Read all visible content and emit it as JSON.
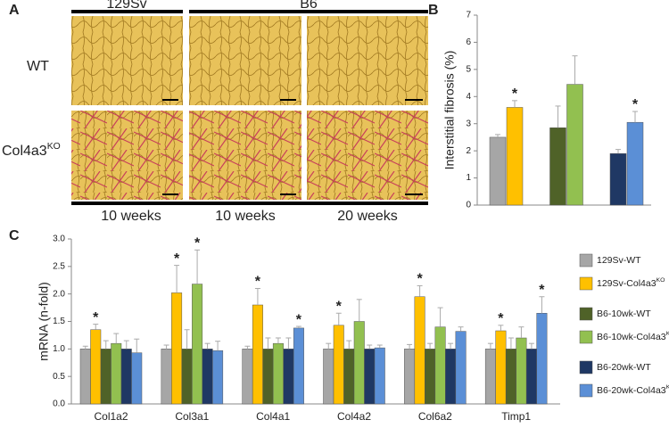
{
  "panel_a": {
    "label": "A",
    "columns": [
      "129Sv",
      "B6"
    ],
    "rows": [
      "WT",
      "Col4a3KO"
    ],
    "times": [
      "10 weeks",
      "10 weeks",
      "20 weeks"
    ]
  },
  "chart_data": [
    {
      "type": "bar",
      "label": "B",
      "ylabel": "Interstitial fibrosis (%)",
      "ylim": [
        0,
        7
      ],
      "yticks": [
        0,
        1,
        2,
        3,
        4,
        5,
        6,
        7
      ],
      "values": [
        2.5,
        3.6,
        2.85,
        4.45,
        1.9,
        3.05
      ],
      "errors": [
        0.1,
        0.25,
        0.8,
        1.05,
        0.15,
        0.4
      ],
      "labels": [
        null,
        "*",
        null,
        null,
        null,
        "*"
      ],
      "colors": [
        "#a6a6a6",
        "#ffc000",
        "#4f6228",
        "#92c050",
        "#1f3864",
        "#5b8fd6"
      ]
    },
    {
      "type": "grouped_bar",
      "label": "C",
      "ylabel": "mRNA (n-fold)",
      "ylim": [
        0,
        3
      ],
      "yticks": [
        {
          "value": 0,
          "label": "0.0"
        },
        0.5,
        {
          "value": 1,
          "label": "1.0"
        },
        1.5,
        {
          "value": 2,
          "label": "2.0"
        },
        2.5,
        {
          "value": 3,
          "label": "3.0"
        }
      ],
      "categories": [
        "Col1a2",
        "Col3a1",
        "Col4a1",
        "Col4a2",
        "Col6a2",
        "Timp1"
      ],
      "series": [
        {
          "name": "129Sv-WT",
          "color": "#a6a6a6",
          "values": [
            1.0,
            1.0,
            1.0,
            1.0,
            1.0,
            1.0
          ],
          "errors": [
            0.05,
            0.07,
            0.05,
            0.1,
            0.08,
            0.1
          ],
          "labels": [
            null,
            null,
            null,
            null,
            null,
            null
          ]
        },
        {
          "name": "129Sv-Col4a3KO",
          "color": "#ffc000",
          "values": [
            1.35,
            2.02,
            1.8,
            1.43,
            1.95,
            1.33
          ],
          "errors": [
            0.1,
            0.5,
            0.3,
            0.22,
            0.2,
            0.1
          ],
          "labels": [
            "*",
            "*",
            "*",
            "*",
            "*",
            "*"
          ]
        },
        {
          "name": "B6-10wk-WT",
          "color": "#4f6228",
          "values": [
            1.0,
            1.0,
            1.0,
            1.0,
            1.0,
            1.0
          ],
          "errors": [
            0.15,
            0.35,
            0.2,
            0.15,
            0.1,
            0.2
          ],
          "labels": [
            null,
            null,
            null,
            null,
            null,
            null
          ]
        },
        {
          "name": "B6-10wk-Col4a3KO",
          "color": "#92c050",
          "values": [
            1.1,
            2.18,
            1.1,
            1.5,
            1.4,
            1.2
          ],
          "errors": [
            0.18,
            0.62,
            0.1,
            0.4,
            0.35,
            0.2
          ],
          "labels": [
            null,
            "*",
            null,
            null,
            null,
            null
          ]
        },
        {
          "name": "B6-20wk-WT",
          "color": "#1f3864",
          "values": [
            1.0,
            1.0,
            1.0,
            1.0,
            1.0,
            1.0
          ],
          "errors": [
            0.15,
            0.1,
            0.2,
            0.07,
            0.1,
            0.1
          ],
          "labels": [
            null,
            null,
            null,
            null,
            null,
            null
          ]
        },
        {
          "name": "B6-20wk-Col4a3KO",
          "color": "#5b8fd6",
          "values": [
            0.93,
            0.97,
            1.38,
            1.02,
            1.32,
            1.65
          ],
          "errors": [
            0.25,
            0.17,
            0.03,
            0.05,
            0.08,
            0.3
          ],
          "labels": [
            null,
            null,
            "*",
            null,
            null,
            "*"
          ]
        }
      ]
    }
  ]
}
